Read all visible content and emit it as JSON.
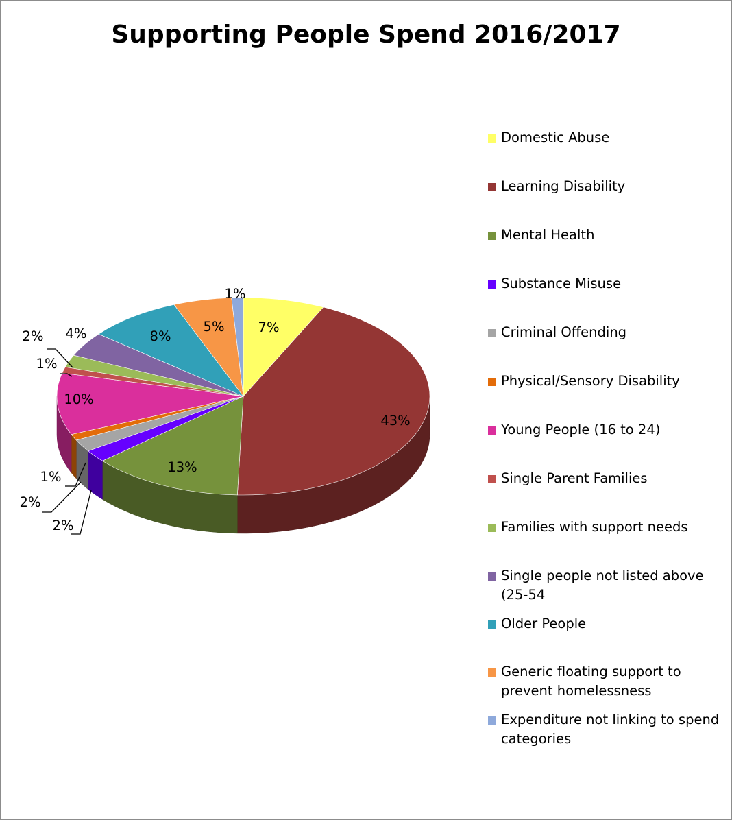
{
  "chart_data": {
    "type": "pie",
    "style": "3d-pie",
    "title": "Supporting People Spend 2016/2017",
    "legend_position": "right",
    "slices": [
      {
        "name": "Domestic Abuse",
        "value": 7,
        "label": "7%",
        "color": "#ffff66"
      },
      {
        "name": "Learning Disability",
        "value": 43,
        "label": "43%",
        "color": "#943634"
      },
      {
        "name": "Mental Health",
        "value": 13,
        "label": "13%",
        "color": "#76923c"
      },
      {
        "name": "Substance Misuse",
        "value": 2,
        "label": "2%",
        "color": "#6600ff"
      },
      {
        "name": "Criminal Offending",
        "value": 2,
        "label": "2%",
        "color": "#a5a5a5"
      },
      {
        "name": "Physical/Sensory Disability",
        "value": 1,
        "label": "1%",
        "color": "#e36c09"
      },
      {
        "name": "Young People (16 to 24)",
        "value": 10,
        "label": "10%",
        "color": "#da2f9c"
      },
      {
        "name": "Single Parent Families",
        "value": 1,
        "label": "1%",
        "color": "#c0504d"
      },
      {
        "name": "Families with support needs",
        "value": 2,
        "label": "2%",
        "color": "#9bbb59"
      },
      {
        "name": "Single people not listed above (25-54",
        "value": 4,
        "label": "4%",
        "color": "#8064a2"
      },
      {
        "name": "Older People",
        "value": 8,
        "label": "8%",
        "color": "#31a0b8"
      },
      {
        "name": "Generic floating support to prevent homelessness",
        "value": 5,
        "label": "5%",
        "color": "#f79646"
      },
      {
        "name": "Expenditure not linking to spend categories",
        "value": 1,
        "label": "1%",
        "color": "#8ea9db"
      }
    ]
  }
}
